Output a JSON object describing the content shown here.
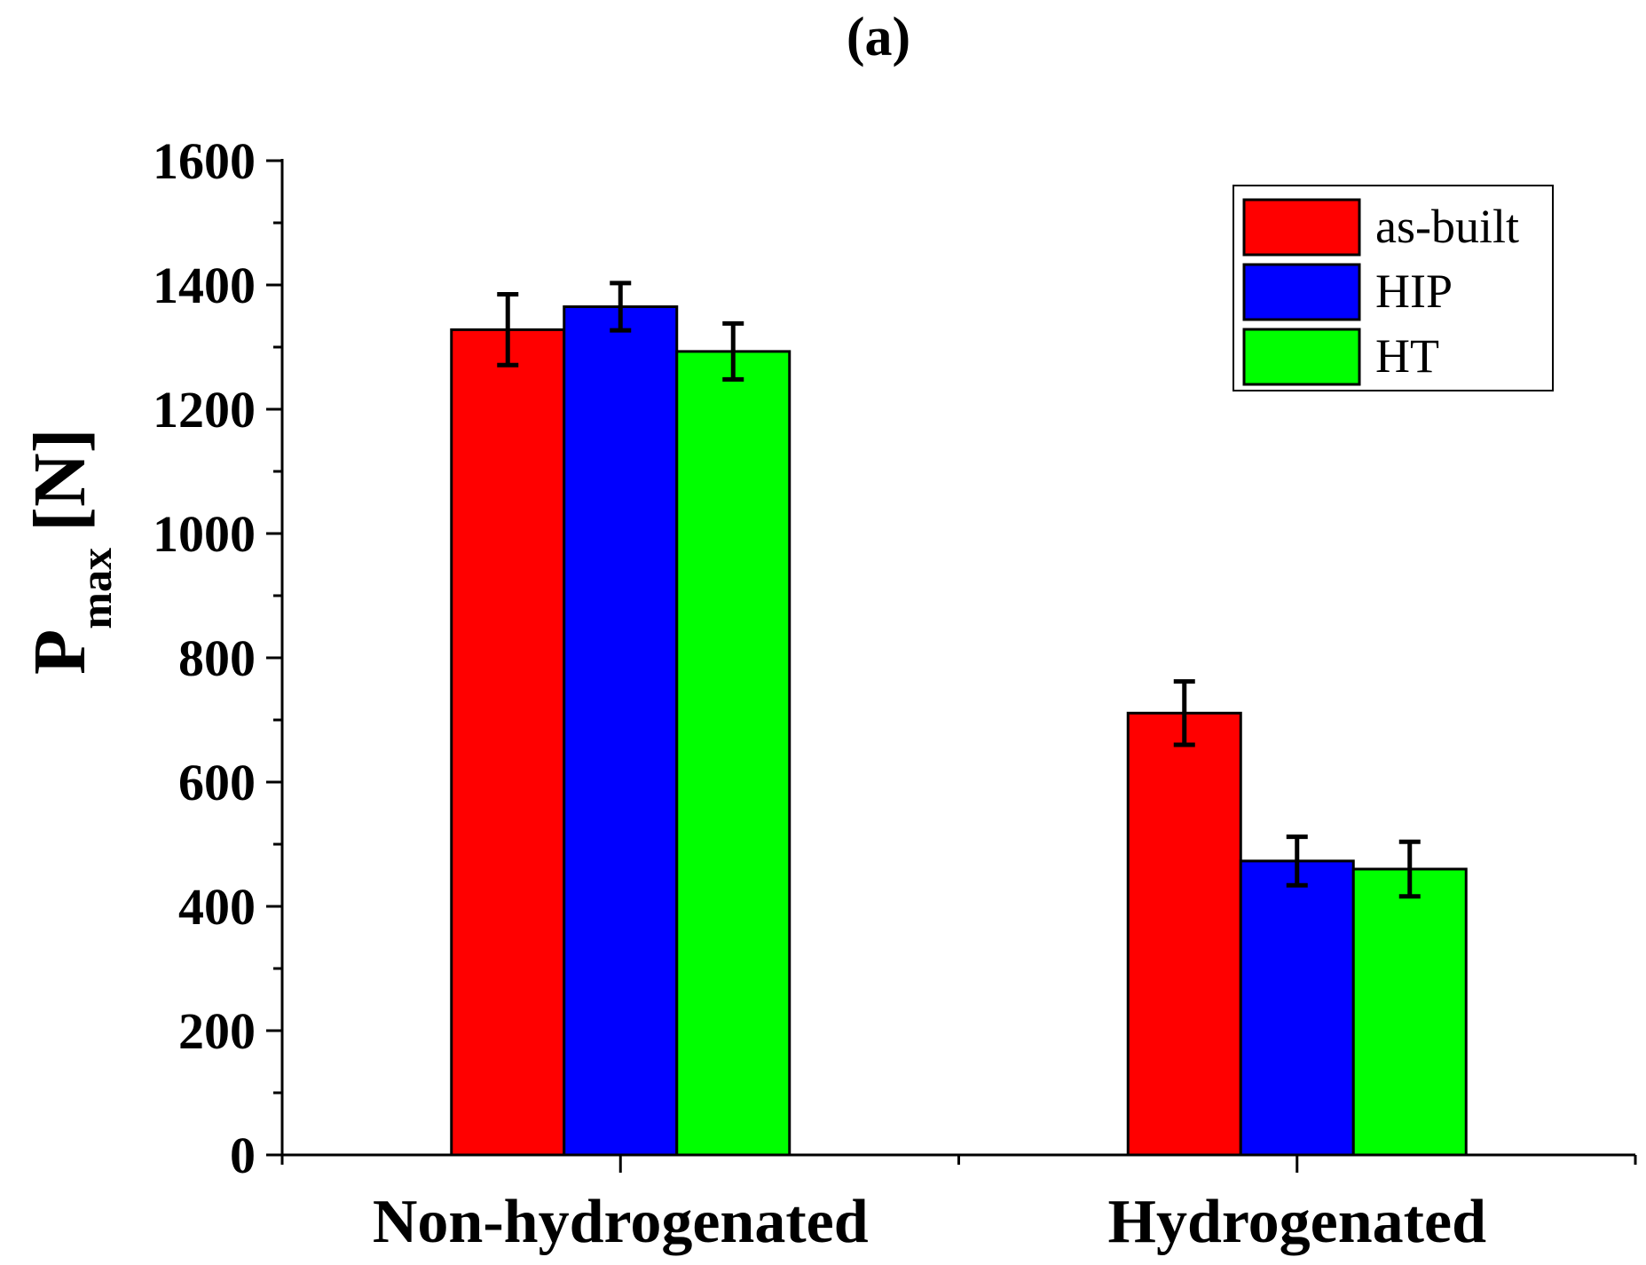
{
  "chart_data": {
    "type": "bar",
    "title": "(a)",
    "ylabel_main": "P",
    "ylabel_sub": "max",
    "ylabel_unit": "[N]",
    "xlabel": "",
    "categories": [
      "Non-hydrogenated",
      "Hydrogenated"
    ],
    "ylim": [
      0,
      1600
    ],
    "yticks": [
      0,
      200,
      400,
      600,
      800,
      1000,
      1200,
      1400,
      1600
    ],
    "ytick_labels": [
      "0",
      "200",
      "400",
      "600",
      "800",
      "1000",
      "1200",
      "1400",
      "1600"
    ],
    "legend_position": "top-right",
    "series": [
      {
        "name": "as-built",
        "color": "#ff0000",
        "values": [
          1328,
          711
        ],
        "errors": [
          57,
          51
        ]
      },
      {
        "name": "HIP",
        "color": "#0000ff",
        "values": [
          1365,
          473
        ],
        "errors": [
          38,
          39
        ]
      },
      {
        "name": "HT",
        "color": "#00ff00",
        "values": [
          1293,
          460
        ],
        "errors": [
          45,
          44
        ]
      }
    ]
  }
}
